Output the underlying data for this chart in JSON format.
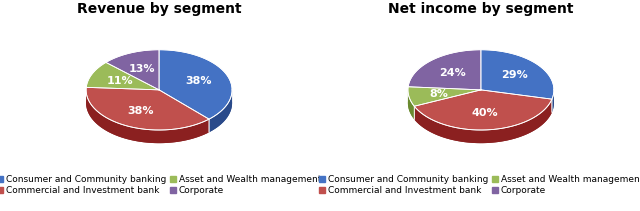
{
  "chart1_title": "Revenue by segment",
  "chart2_title": "Net income by segment",
  "labels": [
    "Consumer and Community banking",
    "Commercial and Investment bank",
    "Asset and Wealth management",
    "Corporate"
  ],
  "revenue_values": [
    38,
    38,
    11,
    13
  ],
  "netincome_values": [
    29,
    40,
    8,
    24
  ],
  "colors": [
    "#4472C4",
    "#C0504D",
    "#9BBB59",
    "#8064A2"
  ],
  "dark_colors": [
    "#2A4A8A",
    "#8B2020",
    "#6A8A30",
    "#5A4070"
  ],
  "background_color": "#FFFFFF",
  "startangle": 90,
  "title_fontsize": 10,
  "label_fontsize": 8,
  "legend_fontsize": 6.5
}
